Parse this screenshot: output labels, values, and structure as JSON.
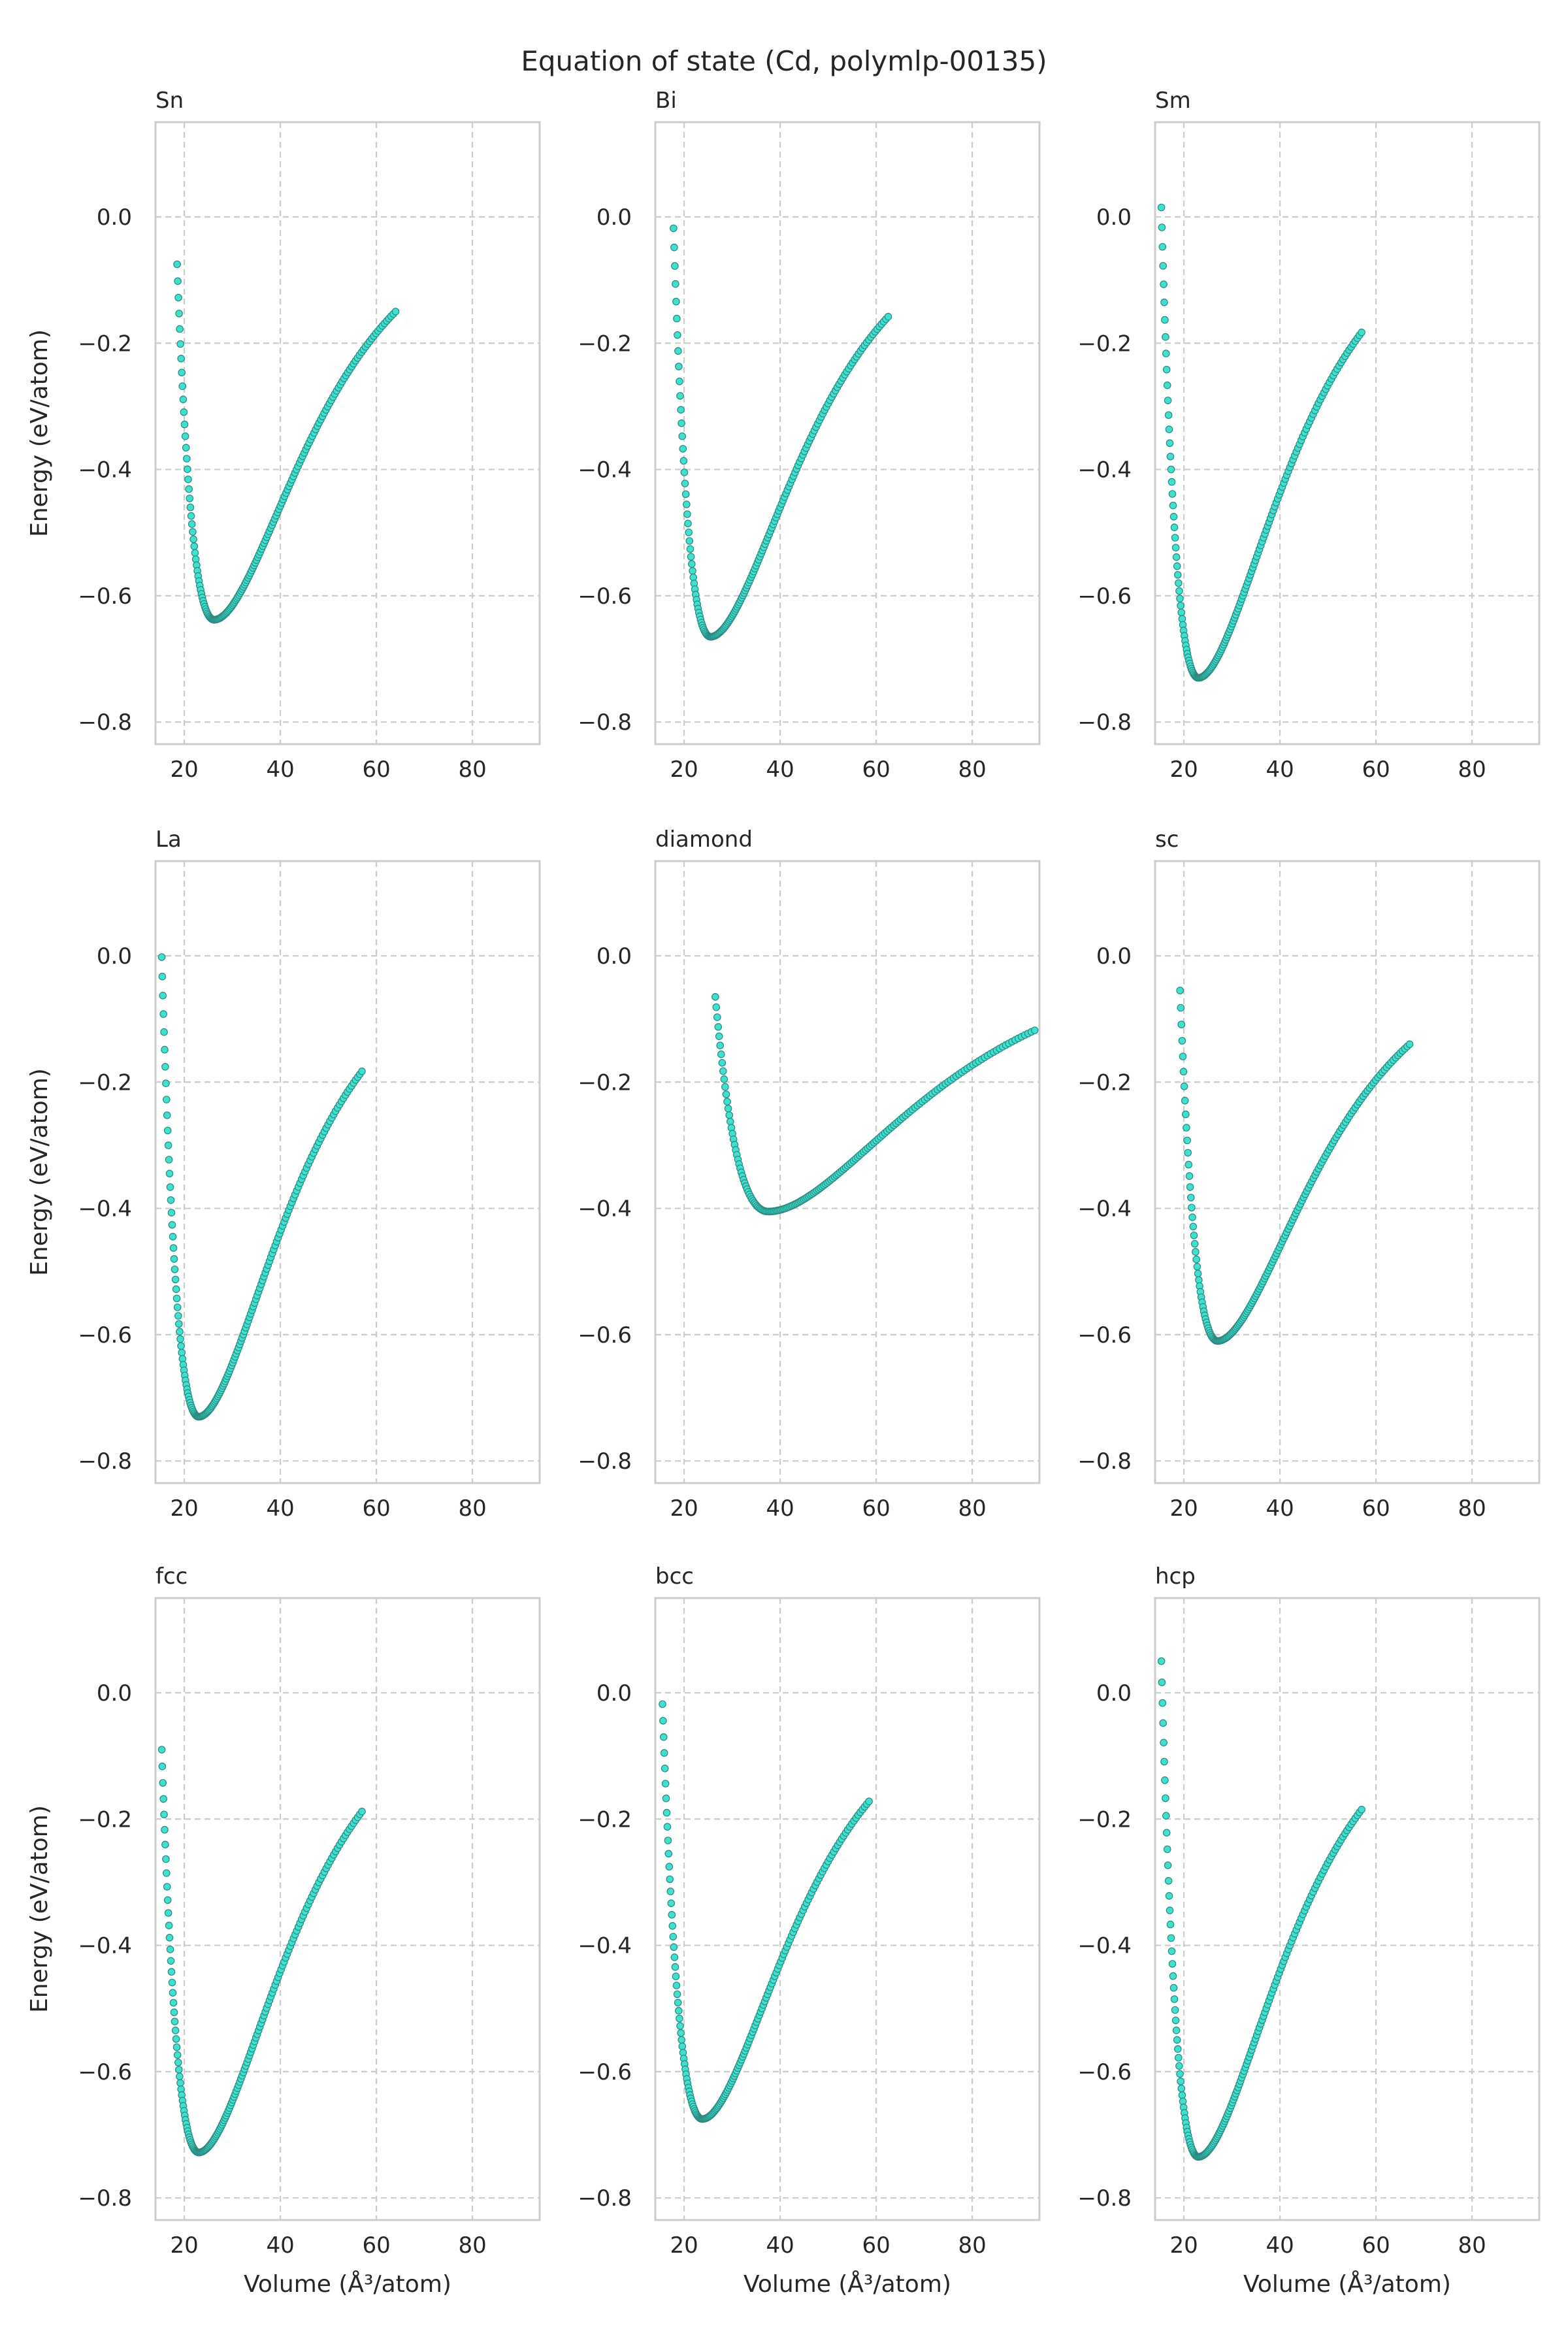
{
  "figure": {
    "title": "Equation of state (Cd, polymlp-00135)",
    "xlabel": "Volume (Å³/atom)",
    "ylabel": "Energy (eV/atom)"
  },
  "style": {
    "marker_color": "#40e0d0",
    "marker_edge": "#2a8a80",
    "grid_color": "#cccccc"
  },
  "chart_data": [
    {
      "type": "scatter",
      "title": "Sn",
      "xlim": [
        14,
        94
      ],
      "ylim": [
        -0.835,
        0.15
      ],
      "xticks": [
        20,
        40,
        60,
        80
      ],
      "yticks": [
        0.0,
        -0.2,
        -0.4,
        -0.6,
        -0.8
      ],
      "curve": {
        "v_first": 18.5,
        "v_min": 26.2,
        "v_last": 64.0,
        "e_first": -0.075,
        "e_min": -0.638,
        "e_last": -0.15
      }
    },
    {
      "type": "scatter",
      "title": "Bi",
      "xlim": [
        14,
        94
      ],
      "ylim": [
        -0.835,
        0.15
      ],
      "xticks": [
        20,
        40,
        60,
        80
      ],
      "yticks": [
        0.0,
        -0.2,
        -0.4,
        -0.6,
        -0.8
      ],
      "curve": {
        "v_first": 17.8,
        "v_min": 25.5,
        "v_last": 62.5,
        "e_first": -0.018,
        "e_min": -0.665,
        "e_last": -0.158
      }
    },
    {
      "type": "scatter",
      "title": "Sm",
      "xlim": [
        14,
        94
      ],
      "ylim": [
        -0.835,
        0.15
      ],
      "xticks": [
        20,
        40,
        60,
        80
      ],
      "yticks": [
        0.0,
        -0.2,
        -0.4,
        -0.6,
        -0.8
      ],
      "curve": {
        "v_first": 15.3,
        "v_min": 23.0,
        "v_last": 57.0,
        "e_first": 0.015,
        "e_min": -0.73,
        "e_last": -0.183
      }
    },
    {
      "type": "scatter",
      "title": "La",
      "xlim": [
        14,
        94
      ],
      "ylim": [
        -0.835,
        0.15
      ],
      "xticks": [
        20,
        40,
        60,
        80
      ],
      "yticks": [
        0.0,
        -0.2,
        -0.4,
        -0.6,
        -0.8
      ],
      "curve": {
        "v_first": 15.3,
        "v_min": 23.0,
        "v_last": 57.0,
        "e_first": -0.002,
        "e_min": -0.73,
        "e_last": -0.183
      }
    },
    {
      "type": "scatter",
      "title": "diamond",
      "xlim": [
        14,
        94
      ],
      "ylim": [
        -0.835,
        0.15
      ],
      "xticks": [
        20,
        40,
        60,
        80
      ],
      "yticks": [
        0.0,
        -0.2,
        -0.4,
        -0.6,
        -0.8
      ],
      "curve": {
        "v_first": 26.5,
        "v_min": 37.5,
        "v_last": 93.0,
        "e_first": -0.065,
        "e_min": -0.405,
        "e_last": -0.118
      }
    },
    {
      "type": "scatter",
      "title": "sc",
      "xlim": [
        14,
        94
      ],
      "ylim": [
        -0.835,
        0.15
      ],
      "xticks": [
        20,
        40,
        60,
        80
      ],
      "yticks": [
        0.0,
        -0.2,
        -0.4,
        -0.6,
        -0.8
      ],
      "curve": {
        "v_first": 19.2,
        "v_min": 27.0,
        "v_last": 67.0,
        "e_first": -0.055,
        "e_min": -0.61,
        "e_last": -0.14
      }
    },
    {
      "type": "scatter",
      "title": "fcc",
      "xlim": [
        14,
        94
      ],
      "ylim": [
        -0.835,
        0.15
      ],
      "xticks": [
        20,
        40,
        60,
        80
      ],
      "yticks": [
        0.0,
        -0.2,
        -0.4,
        -0.6,
        -0.8
      ],
      "curve": {
        "v_first": 15.3,
        "v_min": 23.0,
        "v_last": 57.0,
        "e_first": -0.09,
        "e_min": -0.728,
        "e_last": -0.188
      }
    },
    {
      "type": "scatter",
      "title": "bcc",
      "xlim": [
        14,
        94
      ],
      "ylim": [
        -0.835,
        0.15
      ],
      "xticks": [
        20,
        40,
        60,
        80
      ],
      "yticks": [
        0.0,
        -0.2,
        -0.4,
        -0.6,
        -0.8
      ],
      "curve": {
        "v_first": 15.5,
        "v_min": 23.8,
        "v_last": 58.5,
        "e_first": -0.018,
        "e_min": -0.675,
        "e_last": -0.172
      }
    },
    {
      "type": "scatter",
      "title": "hcp",
      "xlim": [
        14,
        94
      ],
      "ylim": [
        -0.835,
        0.15
      ],
      "xticks": [
        20,
        40,
        60,
        80
      ],
      "yticks": [
        0.0,
        -0.2,
        -0.4,
        -0.6,
        -0.8
      ],
      "curve": {
        "v_first": 15.3,
        "v_min": 23.0,
        "v_last": 57.0,
        "e_first": 0.05,
        "e_min": -0.735,
        "e_last": -0.185
      }
    }
  ]
}
